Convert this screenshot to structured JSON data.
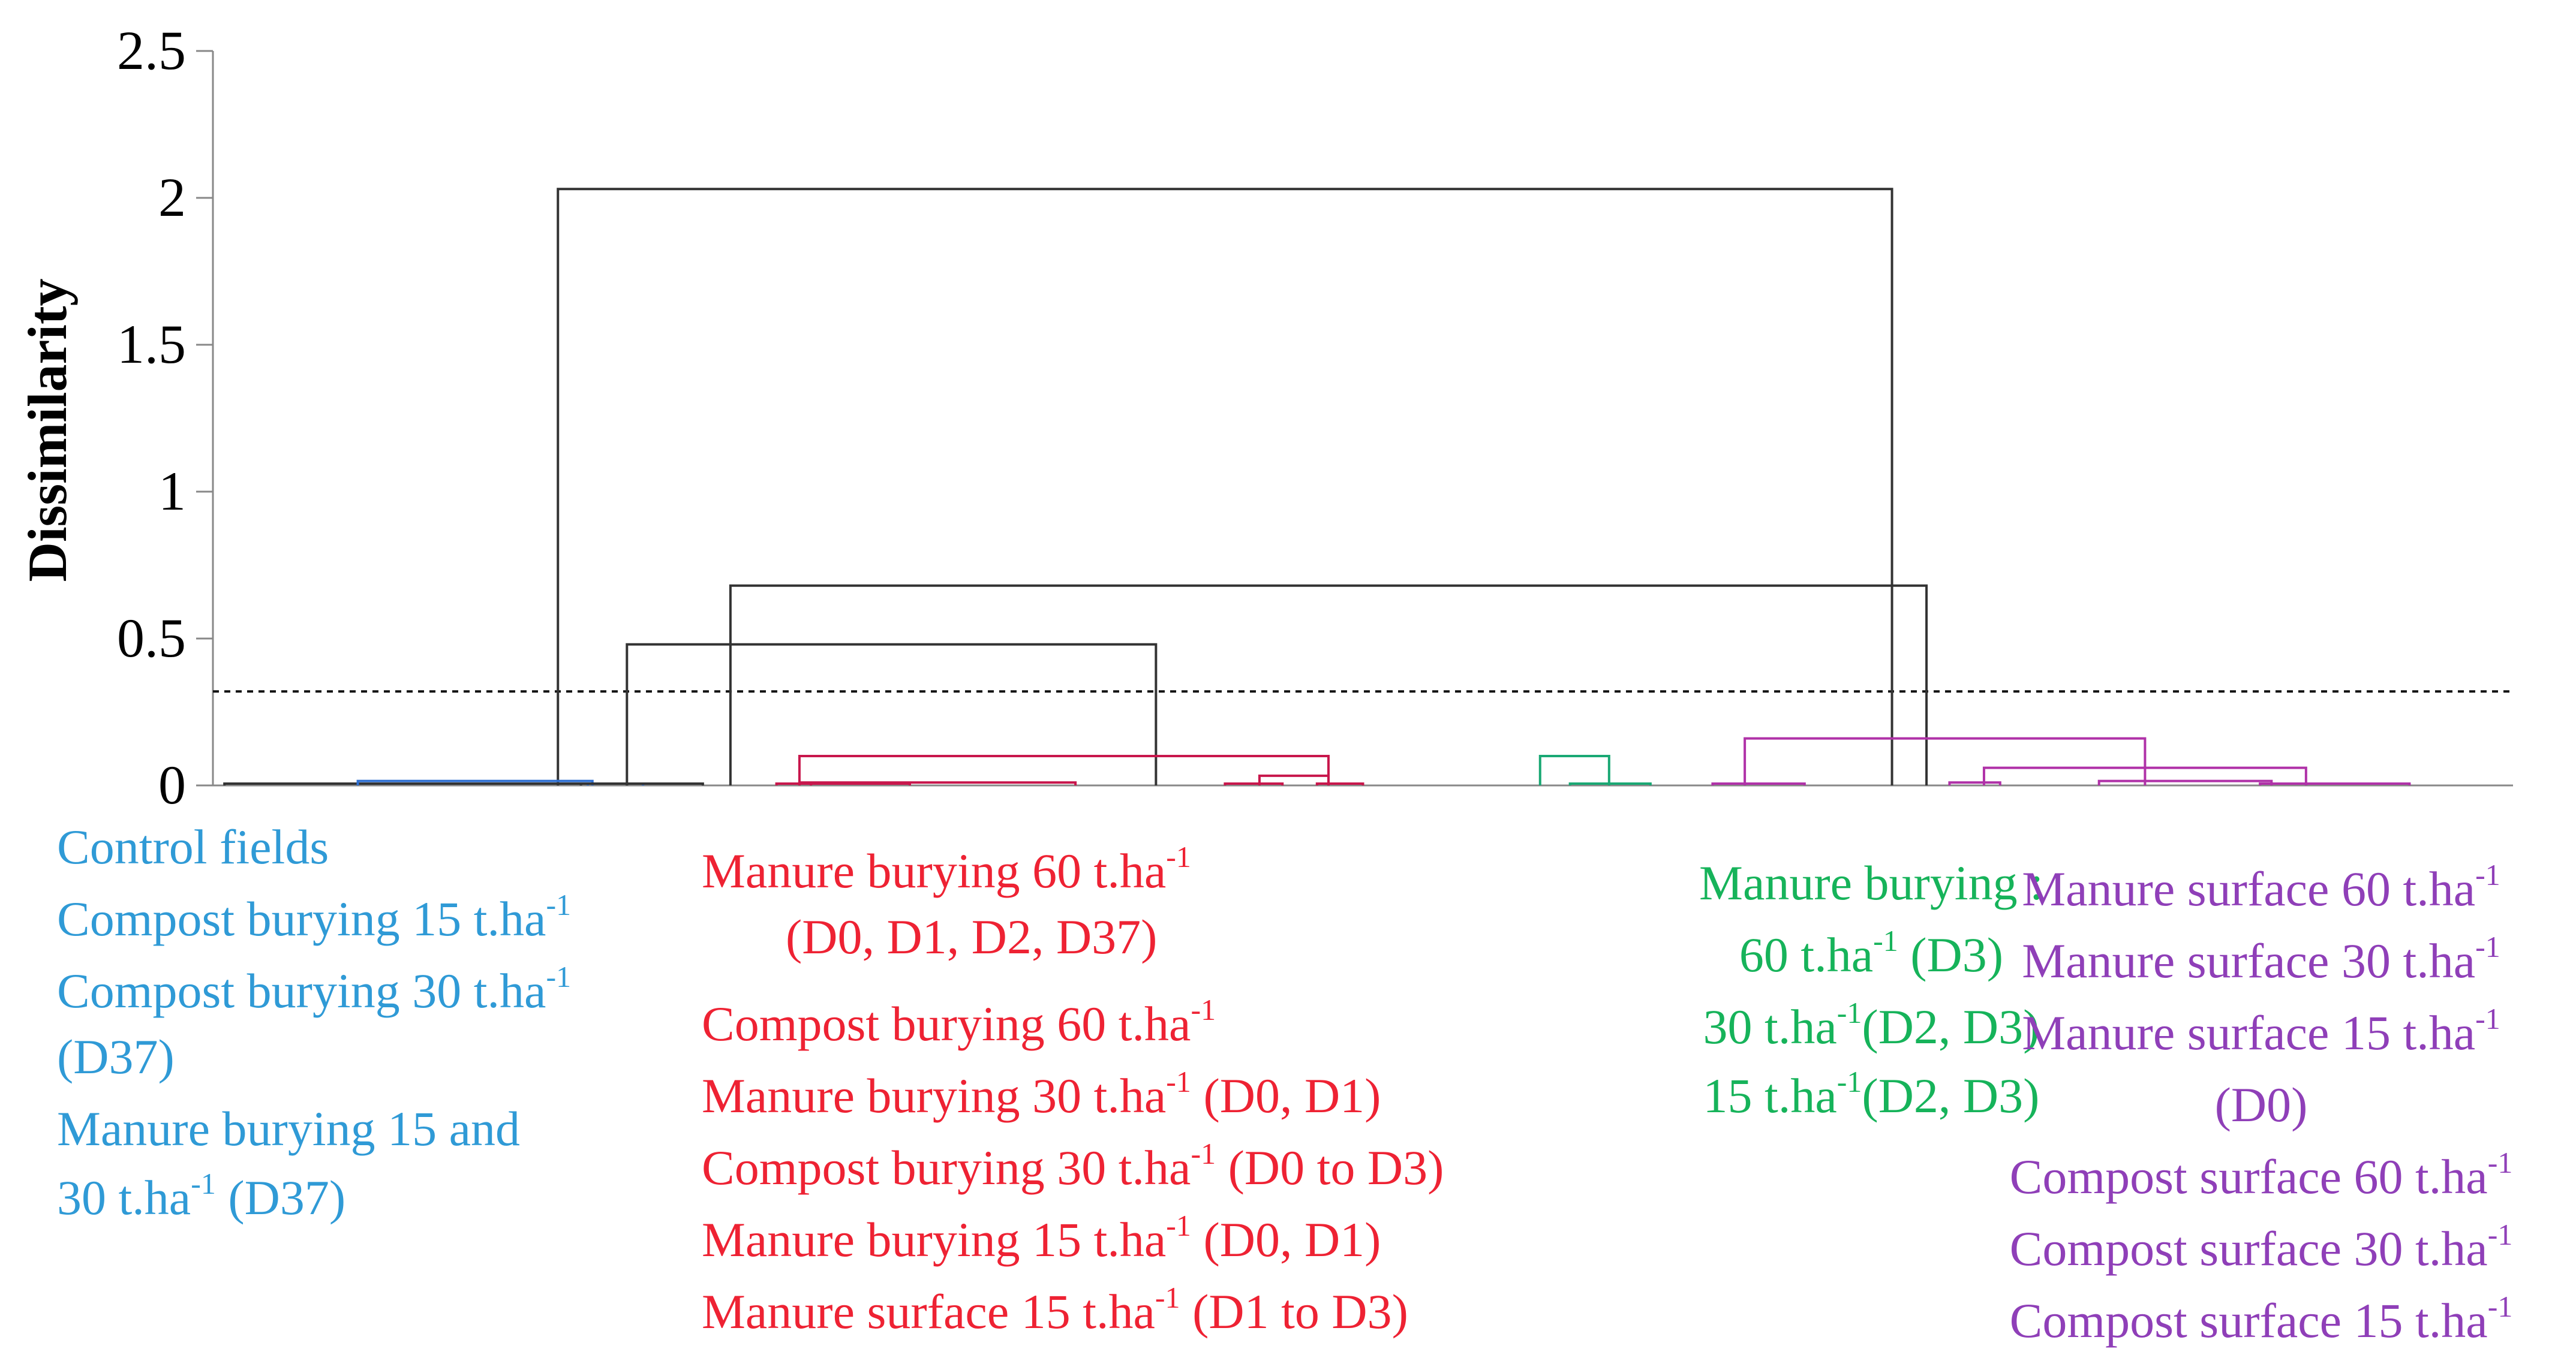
{
  "chart_data": {
    "type": "dendrogram",
    "ylabel": "Dissimilarity",
    "ylim": [
      0,
      2.5
    ],
    "yticks": [
      {
        "value": 0,
        "label": "0"
      },
      {
        "value": 0.5,
        "label": "0.5"
      },
      {
        "value": 1,
        "label": "1"
      },
      {
        "value": 1.5,
        "label": "1.5"
      },
      {
        "value": 2,
        "label": "2"
      },
      {
        "value": 2.5,
        "label": "2.5"
      }
    ],
    "cut_line": 0.32,
    "colors": {
      "axis": "#888888",
      "black": "#333333",
      "blue": "#2f6fd1",
      "red": "#c8174c",
      "green": "#1aa874",
      "purple": "#b032a8"
    },
    "links": [
      {
        "group": "black",
        "left_x": 0.15,
        "right_x": 0.73,
        "height": 2.03
      },
      {
        "group": "black",
        "left_x": 0.225,
        "right_x": 0.745,
        "height": 0.68
      },
      {
        "group": "black",
        "left_x": 0.18,
        "right_x": 0.41,
        "height": 0.48
      },
      {
        "group": "black",
        "left_x": 0.005,
        "right_x": 0.18,
        "height": 0.0
      },
      {
        "group": "blue",
        "left_x": 0.063,
        "right_x": 0.165,
        "height": 0.015
      },
      {
        "group": "blue",
        "left_x": 0.163,
        "right_x": 0.187,
        "height": 0.005
      },
      {
        "group": "black",
        "left_x": 0.16,
        "right_x": 0.213,
        "height": 0.0
      },
      {
        "group": "red",
        "left_x": 0.255,
        "right_x": 0.485,
        "height": 0.1
      },
      {
        "group": "red",
        "left_x": 0.255,
        "right_x": 0.375,
        "height": 0.01
      },
      {
        "group": "red",
        "left_x": 0.245,
        "right_x": 0.26,
        "height": 0.005
      },
      {
        "group": "red",
        "left_x": 0.26,
        "right_x": 0.303,
        "height": 0.005
      },
      {
        "group": "red",
        "left_x": 0.455,
        "right_x": 0.485,
        "height": 0.033
      },
      {
        "group": "red",
        "left_x": 0.44,
        "right_x": 0.465,
        "height": 0.002
      },
      {
        "group": "red",
        "left_x": 0.48,
        "right_x": 0.5,
        "height": 0.002
      },
      {
        "group": "green",
        "left_x": 0.577,
        "right_x": 0.607,
        "height": 0.1
      },
      {
        "group": "green",
        "left_x": 0.59,
        "right_x": 0.625,
        "height": 0.005
      },
      {
        "group": "purple",
        "left_x": 0.666,
        "right_x": 0.84,
        "height": 0.16
      },
      {
        "group": "purple",
        "left_x": 0.652,
        "right_x": 0.692,
        "height": 0.003
      },
      {
        "group": "purple",
        "left_x": 0.77,
        "right_x": 0.91,
        "height": 0.06
      },
      {
        "group": "purple",
        "left_x": 0.755,
        "right_x": 0.777,
        "height": 0.01
      },
      {
        "group": "purple",
        "left_x": 0.82,
        "right_x": 0.895,
        "height": 0.015
      },
      {
        "group": "purple",
        "left_x": 0.89,
        "right_x": 0.955,
        "height": 0.003
      }
    ],
    "legend": [
      {
        "group": "blue",
        "color": "#2f9ad6",
        "lines": [
          [
            "Control fields"
          ],
          [
            "Compost burying 15 t.ha",
            "-1"
          ],
          [
            "Compost burying 30 t.ha",
            "-1"
          ],
          [
            "(D37)"
          ],
          [
            "Manure burying  15 and"
          ],
          [
            "30 t.ha",
            "-1",
            " (D37)"
          ]
        ]
      },
      {
        "group": "red",
        "color": "#ee2233",
        "lines": [
          [
            "Manure burying 60 t.ha",
            "-1"
          ],
          [
            "(D0, D1, D2, D37)"
          ],
          [
            "Compost burying 60 t.ha",
            "-1"
          ],
          [
            "Manure burying 30 t.ha",
            "-1",
            " (D0, D1)"
          ],
          [
            "Compost burying 30 t.ha",
            "-1",
            " (D0 to D3)"
          ],
          [
            "Manure burying 15 t.ha",
            "-1",
            " (D0, D1)"
          ],
          [
            "Manure surface 15 t.ha",
            "-1",
            " (D1 to D3)"
          ]
        ]
      },
      {
        "group": "green",
        "color": "#16b35a",
        "lines": [
          [
            "Manure burying :"
          ],
          [
            "60 t.ha",
            "-1",
            " (D3)"
          ],
          [
            "30 t.ha",
            "-1",
            "(D2, D3)"
          ],
          [
            "15 t.ha",
            "-1",
            "(D2, D3)"
          ]
        ]
      },
      {
        "group": "purple",
        "color": "#8f3fb8",
        "lines": [
          [
            "Manure surface 60 t.ha",
            "-1"
          ],
          [
            "Manure surface 30 t.ha",
            "-1"
          ],
          [
            "Manure surface 15 t.ha",
            "-1"
          ],
          [
            "(D0)"
          ],
          [
            "Compost surface 60 t.ha",
            "-1"
          ],
          [
            "Compost surface 30 t.ha",
            "-1"
          ],
          [
            "Compost surface 15 t.ha",
            "-1"
          ]
        ]
      }
    ]
  }
}
